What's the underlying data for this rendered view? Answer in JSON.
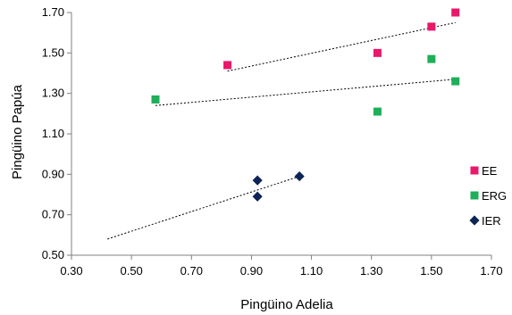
{
  "chart_data": {
    "type": "scatter",
    "xlabel": "Pingüino Adelia",
    "ylabel": "Pingüino Papúa",
    "xlim": [
      0.3,
      1.7
    ],
    "ylim": [
      0.5,
      1.7
    ],
    "x_ticks": [
      "0.30",
      "0.50",
      "0.70",
      "0.90",
      "1.10",
      "1.30",
      "1.50",
      "1.70"
    ],
    "y_ticks": [
      "0.50",
      "0.70",
      "0.90",
      "1.10",
      "1.30",
      "1.50",
      "1.70"
    ],
    "grid": false,
    "legend_position": "right",
    "series": [
      {
        "name": "EE",
        "color": "#e8186b",
        "marker": "square",
        "points": [
          [
            0.82,
            1.44
          ],
          [
            1.32,
            1.5
          ],
          [
            1.5,
            1.63
          ],
          [
            1.58,
            1.7
          ]
        ],
        "trendline": [
          [
            0.82,
            1.41
          ],
          [
            1.58,
            1.65
          ]
        ]
      },
      {
        "name": "ERG",
        "color": "#1fae5a",
        "marker": "square",
        "points": [
          [
            0.58,
            1.27
          ],
          [
            1.32,
            1.21
          ],
          [
            1.5,
            1.47
          ],
          [
            1.58,
            1.36
          ]
        ],
        "trendline": [
          [
            0.58,
            1.24
          ],
          [
            1.58,
            1.37
          ]
        ]
      },
      {
        "name": "IER",
        "color": "#0d2456",
        "marker": "diamond",
        "points": [
          [
            0.92,
            0.87
          ],
          [
            0.92,
            0.79
          ],
          [
            1.06,
            0.89
          ]
        ],
        "trendline": [
          [
            0.42,
            0.58
          ],
          [
            1.06,
            0.89
          ]
        ]
      }
    ]
  }
}
